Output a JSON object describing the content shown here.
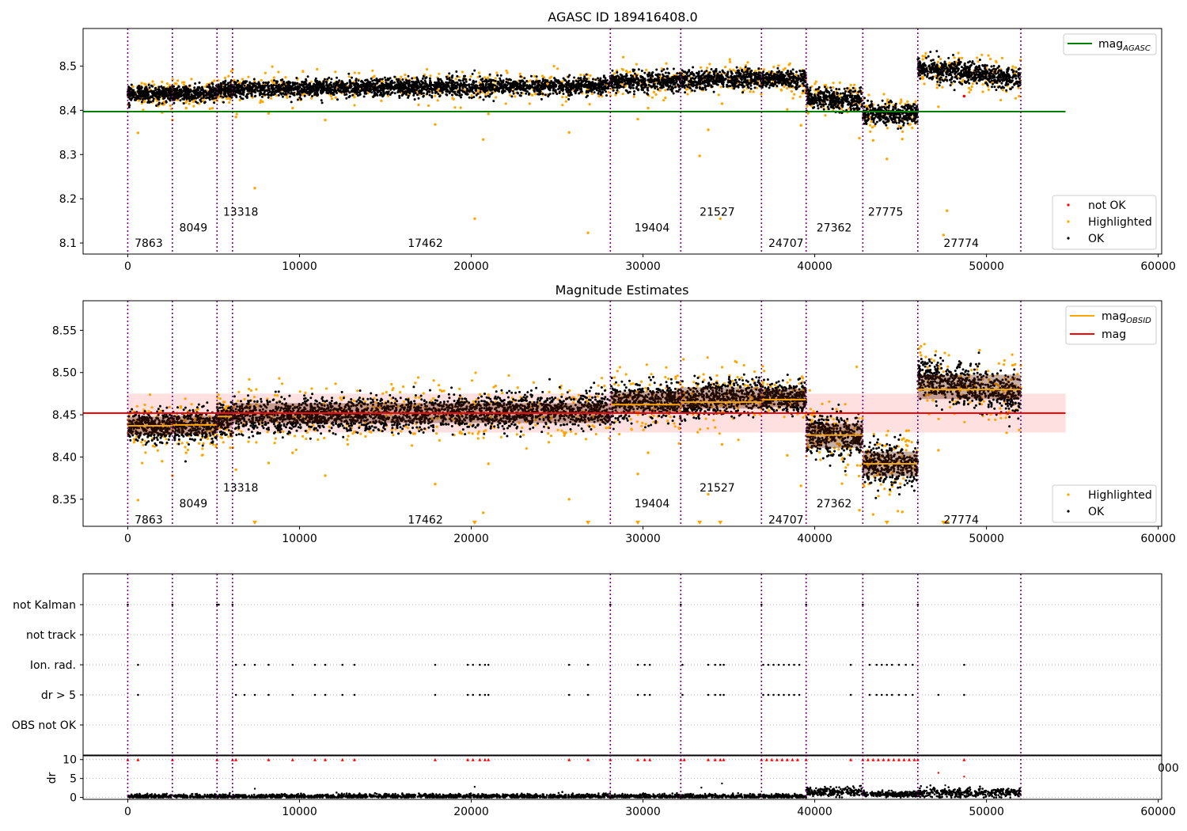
{
  "chart_data": [
    {
      "type": "scatter",
      "title": "AGASC ID 189416408.0",
      "xlim": [
        -2600,
        60200
      ],
      "ylim": [
        8.075,
        8.585
      ],
      "xticks": [
        0,
        10000,
        20000,
        30000,
        40000,
        50000,
        60000
      ],
      "yticks": [
        8.1,
        8.2,
        8.3,
        8.4,
        8.5
      ],
      "ytick_labels": [
        "8.1",
        "8.2",
        "8.3",
        "8.4",
        "8.5"
      ],
      "reference_line": {
        "name": "mag",
        "subscript": "AGASC",
        "y": 8.397,
        "x_range": [
          -2600,
          54600
        ],
        "color": "#008000"
      },
      "legend_main": {
        "items": [
          {
            "label": "mag",
            "sub": "AGASC",
            "kind": "line",
            "color": "#008000"
          }
        ],
        "placement": "top-right"
      },
      "legend_points": {
        "items": [
          {
            "label": "not OK",
            "kind": "dot",
            "color": "#ff0000"
          },
          {
            "label": "Highlighted",
            "kind": "dot",
            "color": "#ffa500"
          },
          {
            "label": "OK",
            "kind": "dot",
            "color": "#000000"
          }
        ],
        "placement": "bottom-right"
      },
      "obsid_labels": [
        {
          "text": "7863",
          "x": 400,
          "y": 8.1
        },
        {
          "text": "8049",
          "x": 3000,
          "y": 8.135
        },
        {
          "text": "13318",
          "x": 5550,
          "y": 8.171
        },
        {
          "text": "17462",
          "x": 16300,
          "y": 8.1
        },
        {
          "text": "19404",
          "x": 29500,
          "y": 8.135
        },
        {
          "text": "21527",
          "x": 33300,
          "y": 8.171
        },
        {
          "text": "24707",
          "x": 37300,
          "y": 8.1
        },
        {
          "text": "27362",
          "x": 40100,
          "y": 8.135
        },
        {
          "text": "27775",
          "x": 43100,
          "y": 8.171
        },
        {
          "text": "27774",
          "x": 47500,
          "y": 8.1
        }
      ],
      "segments": [
        {
          "x0": 0,
          "x1": 2600,
          "mean": 8.437,
          "spread": 0.012,
          "slope": 0
        },
        {
          "x0": 2600,
          "x1": 5200,
          "mean": 8.438,
          "spread": 0.012,
          "slope": 0
        },
        {
          "x0": 5200,
          "x1": 6100,
          "mean": 8.445,
          "spread": 0.012,
          "slope": 0
        },
        {
          "x0": 6100,
          "x1": 28100,
          "mean": 8.452,
          "spread": 0.013,
          "slope": 0.008
        },
        {
          "x0": 28100,
          "x1": 32200,
          "mean": 8.465,
          "spread": 0.014,
          "slope": 0
        },
        {
          "x0": 32200,
          "x1": 36900,
          "mean": 8.47,
          "spread": 0.014,
          "slope": 0.006
        },
        {
          "x0": 36900,
          "x1": 39500,
          "mean": 8.47,
          "spread": 0.012,
          "slope": 0
        },
        {
          "x0": 39500,
          "x1": 42800,
          "mean": 8.425,
          "spread": 0.016,
          "slope": -0.01
        },
        {
          "x0": 42800,
          "x1": 46000,
          "mean": 8.392,
          "spread": 0.016,
          "slope": 0
        },
        {
          "x0": 46000,
          "x1": 52000,
          "mean": 8.483,
          "spread": 0.016,
          "slope": -0.025
        }
      ],
      "highlighted_points": [
        [
          600,
          8.349
        ],
        [
          2000,
          8.395
        ],
        [
          2600,
          8.378
        ],
        [
          3400,
          8.405
        ],
        [
          6300,
          8.385
        ],
        [
          7400,
          8.224
        ],
        [
          8200,
          8.393
        ],
        [
          9600,
          8.405
        ],
        [
          11500,
          8.378
        ],
        [
          13200,
          8.43
        ],
        [
          17900,
          8.368
        ],
        [
          20200,
          8.155
        ],
        [
          20700,
          8.334
        ],
        [
          21000,
          8.392
        ],
        [
          25700,
          8.35
        ],
        [
          26800,
          8.123
        ],
        [
          29700,
          8.38
        ],
        [
          30300,
          8.405
        ],
        [
          33300,
          8.297
        ],
        [
          33800,
          8.356
        ],
        [
          34500,
          8.155
        ],
        [
          34600,
          8.415
        ],
        [
          38400,
          8.402
        ],
        [
          39200,
          8.366
        ],
        [
          42600,
          8.337
        ],
        [
          43400,
          8.332
        ],
        [
          44200,
          8.29
        ],
        [
          45100,
          8.335
        ],
        [
          47200,
          8.408
        ],
        [
          47500,
          8.118
        ],
        [
          47700,
          8.173
        ],
        [
          51900,
          8.432
        ]
      ],
      "notok_points": [
        [
          48700,
          8.432
        ]
      ]
    },
    {
      "type": "scatter",
      "title": "Magnitude Estimates",
      "xlim": [
        -2600,
        60200
      ],
      "ylim": [
        8.318,
        8.585
      ],
      "xticks": [
        0,
        10000,
        20000,
        30000,
        40000,
        50000,
        60000
      ],
      "yticks": [
        8.35,
        8.4,
        8.45,
        8.5,
        8.55
      ],
      "ytick_labels": [
        "8.35",
        "8.40",
        "8.45",
        "8.50",
        "8.55"
      ],
      "reference_line": {
        "name": "mag",
        "y": 8.452,
        "x_range": [
          -2600,
          54600
        ],
        "color": "#ff0000",
        "band": [
          8.429,
          8.475
        ]
      },
      "obsid_mags": [
        {
          "x0": 0,
          "x1": 2600,
          "y": 8.437
        },
        {
          "x0": 2600,
          "x1": 5200,
          "y": 8.438
        },
        {
          "x0": 5200,
          "x1": 6100,
          "y": 8.448
        },
        {
          "x0": 6100,
          "x1": 28100,
          "y": 8.452
        },
        {
          "x0": 28100,
          "x1": 32200,
          "y": 8.462
        },
        {
          "x0": 32200,
          "x1": 36900,
          "y": 8.465
        },
        {
          "x0": 36900,
          "x1": 39500,
          "y": 8.468
        },
        {
          "x0": 39500,
          "x1": 42800,
          "y": 8.426
        },
        {
          "x0": 42800,
          "x1": 46000,
          "y": 8.392
        },
        {
          "x0": 46000,
          "x1": 52000,
          "y": 8.48
        }
      ],
      "legend_main": {
        "items": [
          {
            "label": "mag",
            "sub": "OBSID",
            "kind": "line",
            "color": "#ffa500"
          },
          {
            "label": "mag",
            "kind": "line",
            "color": "#ff0000"
          }
        ],
        "placement": "top-right"
      },
      "legend_points": {
        "items": [
          {
            "label": "Highlighted",
            "kind": "dot",
            "color": "#ffa500"
          },
          {
            "label": "OK",
            "kind": "dot",
            "color": "#000000"
          }
        ],
        "placement": "bottom-right"
      },
      "obsid_labels": [
        {
          "text": "7863",
          "x": 400,
          "y": 8.326
        },
        {
          "text": "8049",
          "x": 3000,
          "y": 8.345
        },
        {
          "text": "13318",
          "x": 5550,
          "y": 8.364
        },
        {
          "text": "17462",
          "x": 16300,
          "y": 8.326
        },
        {
          "text": "19404",
          "x": 29500,
          "y": 8.345
        },
        {
          "text": "21527",
          "x": 33300,
          "y": 8.364
        },
        {
          "text": "24707",
          "x": 37300,
          "y": 8.326
        },
        {
          "text": "27362",
          "x": 40100,
          "y": 8.345
        },
        {
          "text": "27774",
          "x": 47500,
          "y": 8.326
        }
      ],
      "offscale_markers_x": [
        7400,
        20200,
        26800,
        29700,
        33300,
        34500,
        44200,
        47500,
        47700
      ]
    },
    {
      "type": "scatter",
      "title": "",
      "xlim": [
        -2600,
        60200
      ],
      "flag_categories": [
        "not Kalman",
        "not track",
        "Ion. rad.",
        "dr > 5",
        "OBS not OK"
      ],
      "flag_events": {
        "not Kalman": [
          0,
          2600,
          5200,
          5300,
          6100,
          28100,
          32200,
          36900,
          39500,
          42800,
          46000
        ],
        "not track": [],
        "Ion. rad.": [
          600,
          6300,
          6800,
          7400,
          8200,
          9600,
          10900,
          11500,
          12500,
          13200,
          17900,
          19800,
          20100,
          20500,
          20800,
          21000,
          25700,
          26800,
          29700,
          30100,
          30400,
          32300,
          33800,
          34200,
          34500,
          34700,
          37000,
          37300,
          37600,
          37900,
          38200,
          38500,
          38800,
          39100,
          42100,
          43200,
          43600,
          43900,
          44200,
          44500,
          44900,
          45300,
          45700,
          48700
        ],
        "dr > 5": [
          600,
          6300,
          6800,
          7400,
          8200,
          9600,
          10900,
          11500,
          12500,
          13200,
          17900,
          19800,
          20100,
          20500,
          20800,
          21000,
          25700,
          26800,
          29700,
          30100,
          30400,
          32300,
          33800,
          34200,
          34500,
          34700,
          37000,
          37300,
          37600,
          37900,
          38200,
          38500,
          38800,
          39100,
          42100,
          43200,
          43600,
          43900,
          44200,
          44500,
          44900,
          45300,
          45700,
          47200,
          48700
        ],
        "OBS not OK": []
      }
    },
    {
      "type": "scatter",
      "title": "",
      "ylabel": "dr",
      "xlim": [
        -2600,
        60200
      ],
      "ylim": [
        -0.5,
        11.2
      ],
      "xticks": [
        0,
        10000,
        20000,
        30000,
        40000,
        50000,
        60000
      ],
      "xtick_labels": [
        "0",
        "10000",
        "20000",
        "30000",
        "40000",
        "50000",
        "60000"
      ],
      "yticks": [
        0,
        5,
        10
      ],
      "dr_levels": [
        {
          "x0": 0,
          "x1": 39500,
          "mean": 0.3,
          "spread": 0.3
        },
        {
          "x0": 39500,
          "x1": 42800,
          "mean": 1.5,
          "spread": 0.6
        },
        {
          "x0": 42800,
          "x1": 46000,
          "mean": 0.9,
          "spread": 0.4
        },
        {
          "x0": 46000,
          "x1": 52000,
          "mean": 1.2,
          "spread": 0.6
        }
      ],
      "high_dr_x": [
        0,
        600,
        2600,
        5200,
        6100,
        6300,
        8200,
        9600,
        10900,
        11500,
        12500,
        13200,
        17900,
        19800,
        20100,
        20500,
        20800,
        21000,
        25700,
        26800,
        28100,
        29700,
        30100,
        30400,
        32200,
        32400,
        33800,
        34200,
        34500,
        34700,
        36900,
        37200,
        37500,
        37800,
        38100,
        38400,
        38700,
        39000,
        39500,
        42100,
        42800,
        43100,
        43400,
        43700,
        44000,
        44300,
        44600,
        44900,
        45200,
        45500,
        45800,
        46000,
        48700
      ],
      "mid_dr_points": [
        [
          7400,
          2.3
        ],
        [
          20200,
          2.8
        ],
        [
          33400,
          2.6
        ],
        [
          34600,
          3.7
        ],
        [
          47200,
          6.5
        ],
        [
          47600,
          3.2
        ],
        [
          48700,
          5.5
        ]
      ],
      "stray_tick_label": "000"
    }
  ],
  "obsid_boundaries": [
    0,
    2600,
    5200,
    6100,
    28100,
    32200,
    36900,
    39500,
    42800,
    46000,
    52000
  ]
}
